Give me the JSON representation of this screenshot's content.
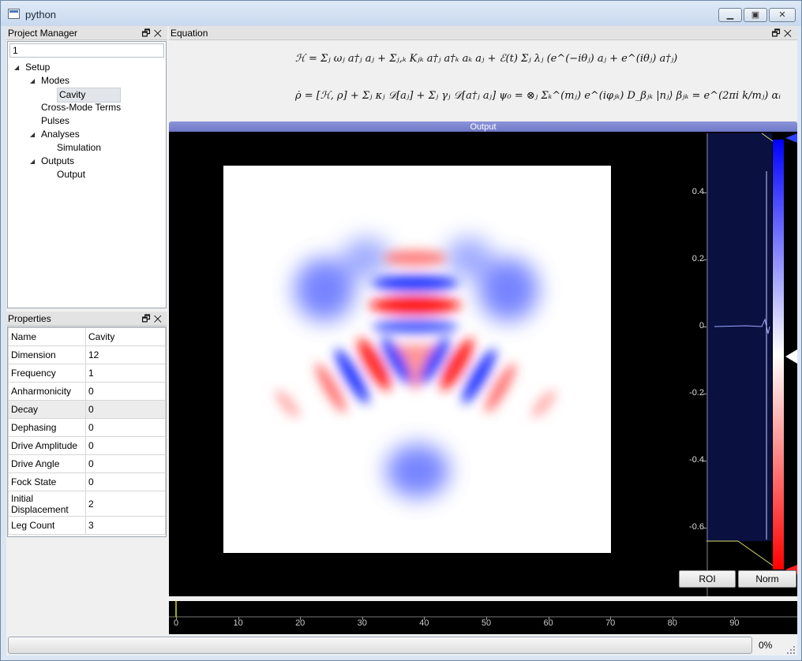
{
  "window": {
    "title": "python",
    "min_icon": "minimize-icon",
    "max_icon": "maximize-icon",
    "close_icon": "close-icon"
  },
  "project_manager": {
    "title": "Project Manager",
    "filter_value": "1",
    "tree": [
      {
        "label": "Setup",
        "level": 0,
        "expanded": true
      },
      {
        "label": "Modes",
        "level": 1,
        "expanded": true
      },
      {
        "label": "Cavity",
        "level": 2,
        "selected": true
      },
      {
        "label": "Cross-Mode Terms",
        "level": 1
      },
      {
        "label": "Pulses",
        "level": 1
      },
      {
        "label": "Analyses",
        "level": 1,
        "expanded": true
      },
      {
        "label": "Simulation",
        "level": 2
      },
      {
        "label": "Outputs",
        "level": 1,
        "expanded": true
      },
      {
        "label": "Output",
        "level": 2
      }
    ]
  },
  "properties": {
    "title": "Properties",
    "rows": [
      {
        "name": "Name",
        "value": "Cavity"
      },
      {
        "name": "Dimension",
        "value": "12"
      },
      {
        "name": "Frequency",
        "value": "1"
      },
      {
        "name": "Anharmonicity",
        "value": "0"
      },
      {
        "name": "Decay",
        "value": "0"
      },
      {
        "name": "Dephasing",
        "value": "0"
      },
      {
        "name": "Drive Amplitude",
        "value": "0"
      },
      {
        "name": "Drive Angle",
        "value": "0"
      },
      {
        "name": "Fock State",
        "value": "0"
      },
      {
        "name": "Initial Displacement",
        "value": "2"
      },
      {
        "name": "Leg Count",
        "value": "3"
      }
    ]
  },
  "equation": {
    "title": "Equation",
    "line1": "ℋ = Σⱼ ωⱼ a†ⱼ aⱼ + Σⱼ,ₖ Kⱼₖ a†ⱼ a†ₖ aₖ aⱼ + ℰ(t) Σⱼ λⱼ (e^(−iθⱼ) aⱼ + e^(iθⱼ) a†ⱼ)",
    "line2": "ρ̇ = [ℋ, ρ] + Σⱼ κⱼ 𝒟[aⱼ] + Σⱼ γⱼ 𝒟[a†ⱼ aⱼ]     ψ₀ = ⊗ⱼ Σₖ^(mⱼ) e^(iφⱼₖ) D_βⱼₖ |nⱼ⟩     βⱼₖ = e^(2πi k/mⱼ) αᵢ"
  },
  "output": {
    "title": "Output",
    "roi_label": "ROI",
    "norm_label": "Norm",
    "colors": {
      "positive": "#1f3cff",
      "negative": "#ff1a1a",
      "background": "#000000"
    }
  },
  "chart_data": [
    {
      "type": "heatmap",
      "title": "",
      "description_colormap": "diverging blue-white-red",
      "ylim": [
        -0.7,
        0.5
      ],
      "y_ticks": [
        "0.4",
        "0.2",
        "0",
        "-0.2",
        "-0.4",
        "-0.6"
      ]
    },
    {
      "type": "line",
      "xlim": [
        0,
        100
      ],
      "x_ticks": [
        "0",
        "10",
        "20",
        "30",
        "40",
        "50",
        "60",
        "70",
        "80",
        "90"
      ],
      "current_frame": 0
    }
  ],
  "status": {
    "progress": 0,
    "progress_text": "0%"
  }
}
